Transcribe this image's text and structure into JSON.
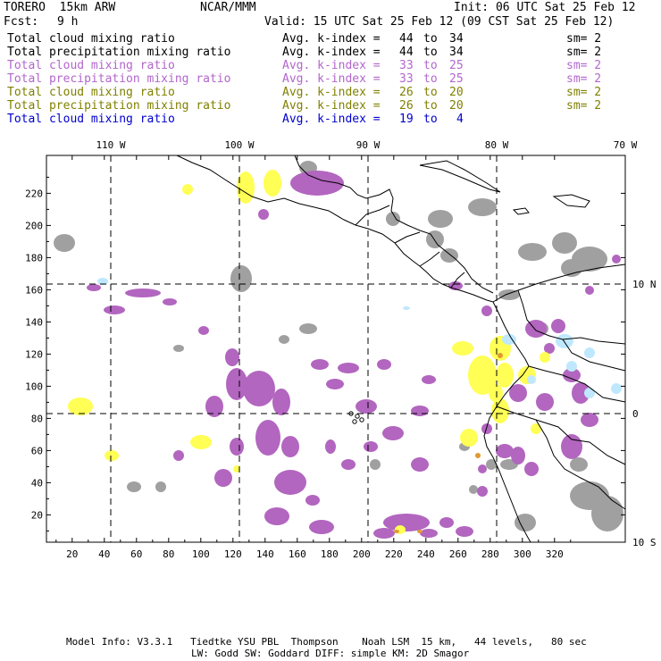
{
  "header": {
    "model": "TORERO  15km ARW",
    "org": "NCAR/MMM",
    "init": "Init: 06 UTC Sat 25 Feb 12",
    "fcst_label": "Fcst:",
    "fcst_value": "9 h",
    "valid": "Valid: 15 UTC Sat 25 Feb 12 (09 CST Sat 25 Feb 12)"
  },
  "legend": [
    {
      "field": "Total cloud mixing ratio",
      "index_label": "Avg. k-index =",
      "from": "44",
      "to_word": "to",
      "to": "34",
      "sm": "sm= 2",
      "color": "#000000"
    },
    {
      "field": "Total precipitation mixing ratio",
      "index_label": "Avg. k-index =",
      "from": "44",
      "to_word": "to",
      "to": "34",
      "sm": "sm= 2",
      "color": "#000000"
    },
    {
      "field": "Total cloud mixing ratio",
      "index_label": "Avg. k-index =",
      "from": "33",
      "to_word": "to",
      "to": "25",
      "sm": "sm= 2",
      "color": "#b266cc"
    },
    {
      "field": "Total precipitation mixing ratio",
      "index_label": "Avg. k-index =",
      "from": "33",
      "to_word": "to",
      "to": "25",
      "sm": "sm= 2",
      "color": "#b266cc"
    },
    {
      "field": "Total cloud mixing ratio",
      "index_label": "Avg. k-index =",
      "from": "26",
      "to_word": "to",
      "to": "20",
      "sm": "sm= 2",
      "color": "#808000"
    },
    {
      "field": "Total precipitation mixing ratio",
      "index_label": "Avg. k-index =",
      "from": "26",
      "to_word": "to",
      "to": "20",
      "sm": "sm= 2",
      "color": "#808000"
    },
    {
      "field": "Total cloud mixing ratio",
      "index_label": "Avg. k-index =",
      "from": "19",
      "to_word": "to",
      "to": "4",
      "color": "#0000cc"
    }
  ],
  "lon_labels": [
    "110 W",
    "100 W",
    "90 W",
    "80 W",
    "70 W"
  ],
  "lat_labels": [
    "10 N",
    "0",
    "10 S"
  ],
  "grid_x_ticks": [
    "20",
    "40",
    "60",
    "80",
    "100",
    "120",
    "140",
    "160",
    "180",
    "200",
    "220",
    "240",
    "260",
    "280",
    "300",
    "320"
  ],
  "grid_y_ticks": [
    "20",
    "40",
    "60",
    "80",
    "100",
    "120",
    "140",
    "160",
    "180",
    "200",
    "220"
  ],
  "colors": {
    "gray": "#a0a0a0",
    "purple": "#b266bf",
    "yellow": "#ffff55",
    "lightblue": "#bfe8ff",
    "orange": "#e09a30"
  },
  "footer": {
    "line1": "Model Info: V3.3.1   Tiedtke YSU PBL  Thompson    Noah LSM  15 km,   44 levels,   80 sec",
    "line2": "LW: Godd SW: Goddard DIFF: simple KM: 2D Smagor"
  }
}
